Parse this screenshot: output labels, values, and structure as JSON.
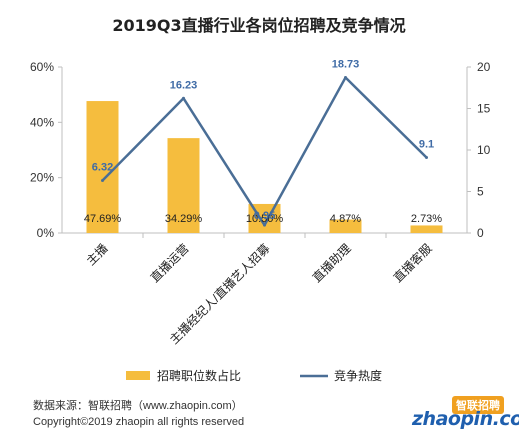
{
  "chart_data": {
    "type": "bar",
    "title": "2019Q3直播行业各岗位招聘及竞争情况",
    "categories": [
      "主播",
      "直播运营",
      "主播经纪人/直播艺人招募",
      "直播助理",
      "直播客服"
    ],
    "series": [
      {
        "name": "招聘职位数占比",
        "type": "bar",
        "axis": "left",
        "values": [
          47.69,
          34.29,
          10.5,
          4.87,
          2.73
        ],
        "labels": [
          "47.69%",
          "34.29%",
          "10.50%",
          "4.87%",
          "2.73%"
        ]
      },
      {
        "name": "竞争热度",
        "type": "line",
        "axis": "right",
        "values": [
          6.32,
          16.23,
          0.95,
          18.73,
          9.1
        ],
        "labels": [
          "6.32",
          "16.23",
          "0.95",
          "18.73",
          "9.1"
        ]
      }
    ],
    "y_left": {
      "ticks": [
        "0%",
        "20%",
        "40%",
        "60%"
      ],
      "range": [
        0,
        60
      ]
    },
    "y_right": {
      "ticks": [
        "0",
        "5",
        "10",
        "15",
        "20"
      ],
      "range": [
        0,
        20
      ]
    },
    "grid": false,
    "legend_position": "bottom",
    "colors": {
      "bar": "#f5bd3e",
      "line": "#4a6e96",
      "line_label": "#3f6ba6"
    }
  },
  "footer": {
    "source": "数据来源：智联招聘（www.zhaopin.com）",
    "copyright": "Copyright©2019 zhaopin all rights reserved"
  },
  "logo": {
    "text_main": "zhaopin.com",
    "text_badge": "智联招聘"
  }
}
